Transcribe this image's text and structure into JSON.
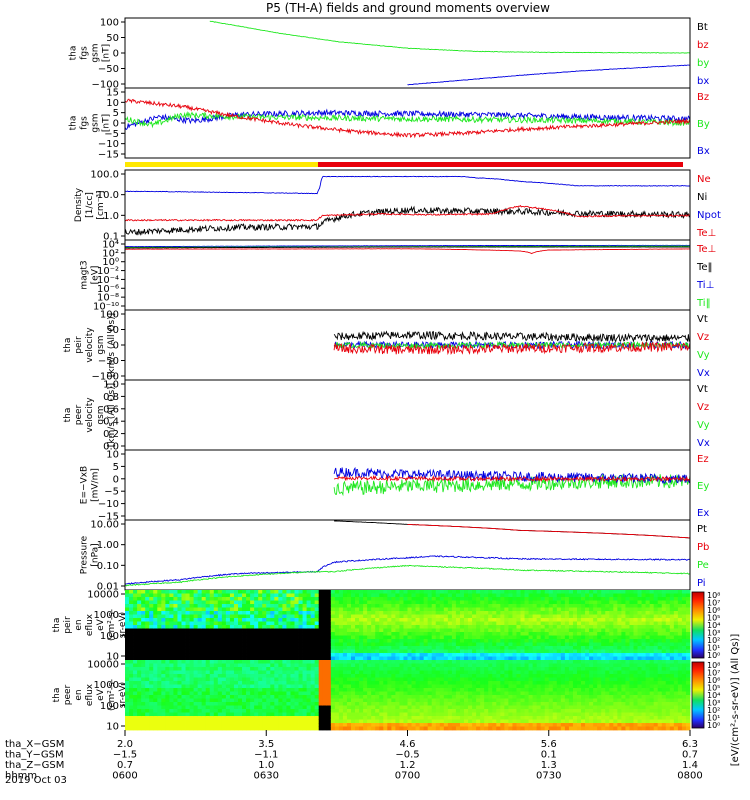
{
  "title": "P5 (TH-A) fields and ground moments overview",
  "date_label": "2019 Oct 03",
  "colors": {
    "black": "#000000",
    "red": "#e8000b",
    "green": "#1ee81e",
    "blue": "#0000e0",
    "yellow": "#ffe800"
  },
  "chart_data": [
    {
      "type": "line",
      "ylabel": [
        "tha",
        "fgs",
        "gsm",
        "[nT]"
      ],
      "yticks": [
        "100",
        "50",
        "0",
        "−50",
        "−100"
      ],
      "ylim": [
        -110,
        110
      ],
      "legend": [
        {
          "label": "Bt",
          "color": "#000000"
        },
        {
          "label": "bz",
          "color": "#e8000b"
        },
        {
          "label": "by",
          "color": "#1ee81e"
        },
        {
          "label": "bx",
          "color": "#0000e0"
        }
      ],
      "series": [
        {
          "name": "by",
          "color": "#1ee81e",
          "x": [
            0.15,
            0.2,
            0.28,
            0.38,
            0.5,
            0.62,
            0.75,
            0.88,
            1.0
          ],
          "y": [
            100,
            85,
            60,
            35,
            15,
            5,
            2,
            1,
            0
          ],
          "noise": 0.8
        },
        {
          "name": "bx",
          "color": "#0000e0",
          "x": [
            0.5,
            0.6,
            0.7,
            0.8,
            0.9,
            1.0
          ],
          "y": [
            -100,
            -85,
            -70,
            -57,
            -47,
            -38
          ],
          "noise": 0.8
        }
      ]
    },
    {
      "type": "line",
      "ylabel": [
        "tha",
        "fgs",
        "gsm",
        "[nT]"
      ],
      "yticks": [
        "15",
        "10",
        "5",
        "0",
        "−5",
        "−10",
        "−15"
      ],
      "ylim": [
        -18,
        16
      ],
      "legend": [
        {
          "label": "Bz",
          "color": "#e8000b"
        },
        {
          "label": "By",
          "color": "#1ee81e"
        },
        {
          "label": "Bx",
          "color": "#0000e0"
        }
      ],
      "series": [
        {
          "name": "Bx",
          "color": "#0000e0",
          "x": [
            0,
            0.06,
            0.12,
            0.2,
            0.35,
            0.5,
            0.65,
            0.8,
            1.0
          ],
          "y": [
            -3,
            2,
            0,
            3,
            4,
            3.5,
            3,
            2,
            1
          ],
          "noise": 1.4
        },
        {
          "name": "By",
          "color": "#1ee81e",
          "x": [
            0,
            0.05,
            0.1,
            0.2,
            0.35,
            0.5,
            0.7,
            0.85,
            1.0
          ],
          "y": [
            1,
            -2,
            3,
            2,
            1.5,
            1,
            0.5,
            0,
            -1
          ],
          "noise": 1.4
        },
        {
          "name": "Bz",
          "color": "#e8000b",
          "x": [
            0,
            0.1,
            0.2,
            0.3,
            0.4,
            0.5,
            0.6,
            0.7,
            0.85,
            1.0
          ],
          "y": [
            10,
            7,
            2,
            -2,
            -5,
            -7,
            -6,
            -4,
            -2,
            0
          ],
          "noise": 0.9
        }
      ]
    },
    {
      "type": "line",
      "log": true,
      "ylabel": [
        "Density",
        "[1/cc]",
        "[cm⁻³]"
      ],
      "yticks": [
        "100.0",
        "10.0",
        "1.0",
        "0.1"
      ],
      "ylim": [
        0.04,
        300
      ],
      "legend": [
        {
          "label": "Ne",
          "color": "#e8000b"
        },
        {
          "label": "Ni",
          "color": "#000000"
        },
        {
          "label": "Npot",
          "color": "#0000e0"
        },
        {
          "label": "Te⊥",
          "color": "#e8000b"
        }
      ],
      "series": [
        {
          "name": "Npot",
          "color": "#0000e0",
          "x": [
            0,
            0.34,
            0.345,
            0.35,
            0.6,
            0.62,
            0.65,
            0.7,
            0.8,
            1.0
          ],
          "y": [
            20,
            15,
            30,
            130,
            130,
            110,
            100,
            70,
            40,
            40
          ],
          "noise": 0.03
        },
        {
          "name": "Ni",
          "color": "#000000",
          "x": [
            0,
            0.1,
            0.2,
            0.34,
            0.4,
            0.5,
            0.6,
            0.7,
            0.8,
            1.0
          ],
          "y": [
            0.1,
            0.15,
            0.2,
            0.22,
            1.0,
            1.8,
            1.6,
            1.5,
            1.2,
            1.0
          ],
          "noise": 0.35
        },
        {
          "name": "Ne",
          "color": "#e8000b",
          "x": [
            0,
            0.34,
            0.35,
            0.45,
            0.55,
            0.65,
            0.7,
            0.8,
            0.9,
            1.0
          ],
          "y": [
            0.5,
            0.5,
            0.9,
            1.1,
            1.0,
            1.1,
            3,
            0.8,
            0.9,
            0.9
          ],
          "noise": 0.08
        }
      ]
    },
    {
      "type": "line",
      "log": true,
      "ylabel": [
        "magt3",
        "[eV]"
      ],
      "yticks": [
        "10⁴",
        "10²",
        "10⁰",
        "10⁻²",
        "10⁻⁴",
        "10⁻⁶",
        "10⁻⁸",
        "10⁻¹⁰"
      ],
      "ylim": [
        1e-11,
        100000.0
      ],
      "legend": [
        {
          "label": "Te⊥",
          "color": "#e8000b"
        },
        {
          "label": "Te‖",
          "color": "#000000"
        },
        {
          "label": "Ti⊥",
          "color": "#0000e0"
        },
        {
          "label": "Ti‖",
          "color": "#1ee81e"
        }
      ],
      "series": [
        {
          "name": "Ti⊥",
          "color": "#0000e0",
          "x": [
            0,
            0.5,
            1.0
          ],
          "y": [
            3000,
            5000,
            6000
          ],
          "noise": 0.05
        },
        {
          "name": "Ti‖",
          "color": "#1ee81e",
          "x": [
            0,
            0.5,
            1.0
          ],
          "y": [
            2000,
            3000,
            4000
          ],
          "noise": 0.05
        },
        {
          "name": "Te⊥",
          "color": "#e8000b",
          "x": [
            0,
            0.5,
            0.7,
            0.72,
            0.75,
            1.0
          ],
          "y": [
            800,
            1000,
            300,
            80,
            500,
            900
          ],
          "noise": 0.05
        },
        {
          "name": "Te‖",
          "color": "#000000",
          "x": [
            0,
            0.5,
            1.0
          ],
          "y": [
            1500,
            2500,
            2500
          ],
          "noise": 0.05
        }
      ]
    },
    {
      "type": "line",
      "ylabel": [
        "tha",
        "peir",
        "velocity",
        "gsm",
        "[km/s (All Qs)]"
      ],
      "yticks": [
        "100",
        "50",
        "0",
        "−50",
        "−100"
      ],
      "ylim": [
        -105,
        105
      ],
      "legend": [
        {
          "label": "Vt",
          "color": "#000000"
        },
        {
          "label": "Vz",
          "color": "#e8000b"
        },
        {
          "label": "Vy",
          "color": "#1ee81e"
        },
        {
          "label": "Vx",
          "color": "#0000e0"
        }
      ],
      "series": [
        {
          "name": "Vx",
          "color": "#0000e0",
          "x": [
            0.37,
            0.5,
            0.7,
            1.0
          ],
          "y": [
            0,
            0,
            0,
            0
          ],
          "noise": 10
        },
        {
          "name": "Vy",
          "color": "#1ee81e",
          "x": [
            0.37,
            0.5,
            0.7,
            1.0
          ],
          "y": [
            0,
            -2,
            0,
            0
          ],
          "noise": 8
        },
        {
          "name": "Vz",
          "color": "#e8000b",
          "x": [
            0.37,
            0.5,
            0.7,
            1.0
          ],
          "y": [
            -10,
            -15,
            -10,
            -5
          ],
          "noise": 14
        },
        {
          "name": "Vt",
          "color": "#000000",
          "x": [
            0.37,
            0.5,
            0.7,
            1.0
          ],
          "y": [
            25,
            30,
            25,
            20
          ],
          "noise": 12
        }
      ]
    },
    {
      "type": "line",
      "ylabel": [
        "tha",
        "peer",
        "velocity",
        "gsm",
        "[km/s (All Qs)]"
      ],
      "yticks": [
        "1.0",
        "0.8",
        "0.6",
        "0.4",
        "0.2",
        "0.0"
      ],
      "ylim": [
        0,
        1
      ],
      "legend": [
        {
          "label": "Vt",
          "color": "#000000"
        },
        {
          "label": "Vz",
          "color": "#e8000b"
        },
        {
          "label": "Vy",
          "color": "#1ee81e"
        },
        {
          "label": "Vx",
          "color": "#0000e0"
        }
      ],
      "series": []
    },
    {
      "type": "line",
      "ylabel": [
        "E=−VxB",
        "[mV/m]"
      ],
      "yticks": [
        "10",
        "5",
        "0",
        "−5",
        "−10",
        "−15"
      ],
      "ylim": [
        -17,
        12
      ],
      "legend": [
        {
          "label": "Ez",
          "color": "#e8000b"
        },
        {
          "label": "Ey",
          "color": "#1ee81e"
        },
        {
          "label": "Ex",
          "color": "#0000e0"
        }
      ],
      "series": [
        {
          "name": "Ey",
          "color": "#1ee81e",
          "x": [
            0.37,
            0.5,
            0.7,
            0.85,
            1.0
          ],
          "y": [
            -4,
            -3,
            -2,
            -1,
            -1
          ],
          "noise": 3
        },
        {
          "name": "Ex",
          "color": "#0000e0",
          "x": [
            0.37,
            0.5,
            0.7,
            0.85,
            1.0
          ],
          "y": [
            3,
            2,
            1,
            0.5,
            0
          ],
          "noise": 2
        },
        {
          "name": "Ez",
          "color": "#e8000b",
          "x": [
            0.37,
            0.5,
            0.7,
            1.0
          ],
          "y": [
            0.5,
            0.2,
            0,
            0
          ],
          "noise": 0.8
        }
      ]
    },
    {
      "type": "line",
      "log": true,
      "ylabel": [
        "Pressure",
        "[nPa]"
      ],
      "yticks": [
        "10.00",
        "1.00",
        "0.10",
        "0.01"
      ],
      "ylim": [
        0.006,
        20
      ],
      "legend": [
        {
          "label": "Pt",
          "color": "#000000"
        },
        {
          "label": "Pb",
          "color": "#e8000b"
        },
        {
          "label": "Pe",
          "color": "#1ee81e"
        },
        {
          "label": "Pi",
          "color": "#0000e0"
        }
      ],
      "series": [
        {
          "name": "Pt",
          "color": "#000000",
          "x": [
            0.37,
            0.5,
            0.7,
            1.0
          ],
          "y": [
            18,
            12,
            6,
            2.5
          ],
          "noise": 0.01
        },
        {
          "name": "Pb",
          "color": "#e8000b",
          "x": [
            0.5,
            0.7,
            1.0
          ],
          "y": [
            12,
            6,
            2.5
          ],
          "noise": 0.01
        },
        {
          "name": "Pi",
          "color": "#0000e0",
          "x": [
            0,
            0.1,
            0.2,
            0.34,
            0.37,
            0.5,
            0.55,
            0.7,
            1.0
          ],
          "y": [
            0.012,
            0.02,
            0.04,
            0.05,
            0.15,
            0.25,
            0.3,
            0.22,
            0.2
          ],
          "noise": 0.06
        },
        {
          "name": "Pe",
          "color": "#1ee81e",
          "x": [
            0,
            0.1,
            0.2,
            0.34,
            0.37,
            0.5,
            0.7,
            1.0
          ],
          "y": [
            0.01,
            0.015,
            0.03,
            0.05,
            0.05,
            0.1,
            0.06,
            0.04
          ],
          "noise": 0.05
        }
      ]
    },
    {
      "type": "heatmap",
      "ylabel": [
        "tha",
        "peir",
        "en",
        "eflux",
        "eV",
        "(cm²-s-",
        "sr-eV)"
      ],
      "yticks": [
        "10000",
        "1000",
        "100",
        "10"
      ],
      "colorbar_ticks": [
        "10⁸",
        "10⁷",
        "10⁶",
        "10⁵",
        "10⁴",
        "10³",
        "10²",
        "10¹",
        "10⁰"
      ]
    },
    {
      "type": "heatmap",
      "ylabel": [
        "tha",
        "peer",
        "en",
        "eflux",
        "eV",
        "(cm²-s-",
        "sr-eV)"
      ],
      "yticks": [
        "10000",
        "1000",
        "100",
        "10"
      ],
      "colorbar_ticks": [
        "10⁸",
        "10⁷",
        "10⁶",
        "10⁵",
        "10⁴",
        "10³",
        "10²",
        "10¹",
        "10⁰"
      ]
    }
  ],
  "colorbar_label": "[eV/(cm²-s-sr-eV)] (All Qs)]",
  "x_axis": {
    "row_labels": [
      "tha_X−GSM",
      "tha_Y−GSM",
      "tha_Z−GSM",
      "hhmm"
    ],
    "ticks": [
      {
        "x": 0.0,
        "vals": [
          "2.0",
          "−1.5",
          "0.7",
          "0600"
        ]
      },
      {
        "x": 0.25,
        "vals": [
          "3.5",
          "−1.1",
          "1.0",
          "0630"
        ]
      },
      {
        "x": 0.5,
        "vals": [
          "4.6",
          "−0.5",
          "1.2",
          "0700"
        ]
      },
      {
        "x": 0.75,
        "vals": [
          "5.6",
          "0.1",
          "1.3",
          "0730"
        ]
      },
      {
        "x": 1.0,
        "vals": [
          "6.3",
          "0.7",
          "1.4",
          "0800"
        ]
      }
    ]
  }
}
